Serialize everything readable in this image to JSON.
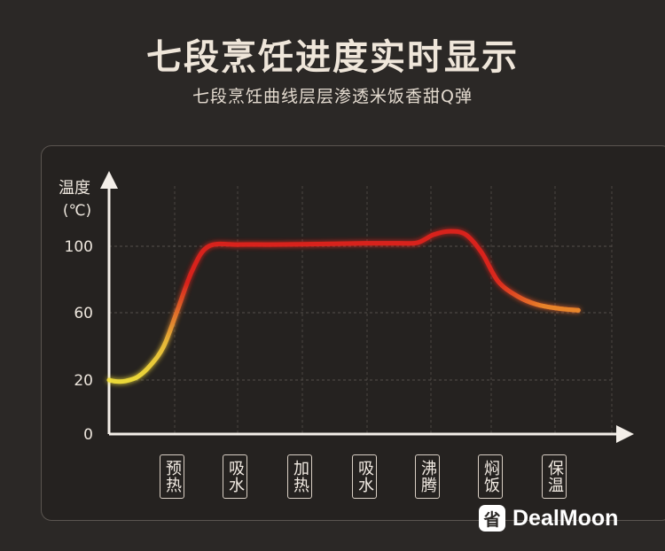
{
  "header": {
    "title": "七段烹饪进度实时显示",
    "subtitle": "七段烹饪曲线层层渗透米饭香甜Q弹"
  },
  "chart_data": {
    "type": "line",
    "ylabel_line1": "温度",
    "ylabel_line2": "(℃)",
    "yticks": [
      0,
      20,
      60,
      100
    ],
    "ylim": [
      0,
      110
    ],
    "grid": true,
    "stages": [
      "预热",
      "吸水",
      "加热",
      "吸水",
      "沸腾",
      "焖饭",
      "保温"
    ],
    "series": [
      {
        "x": [
          0,
          0.1,
          0.25,
          0.45,
          0.65,
          0.85,
          1.05,
          1.3,
          1.55,
          2,
          2.5,
          3,
          3.5,
          4,
          4.5,
          4.8,
          5.05,
          5.3,
          5.55,
          5.8,
          6.05,
          6.35,
          6.65,
          7.0,
          7.3
        ],
        "y": [
          20,
          19.5,
          19.6,
          22,
          29,
          40,
          60,
          86,
          100,
          101,
          101,
          101.2,
          101.5,
          101.8,
          101.8,
          102.2,
          107,
          109,
          107,
          96,
          79,
          70,
          65,
          62.5,
          61.5
        ]
      }
    ],
    "colors": {
      "cool": "#f5e23a",
      "hot": "#e2241d",
      "warm": "#e8872a"
    }
  },
  "brand": {
    "logo_icon": "dealmoon-logo-icon",
    "logo_glyph": "省",
    "name": "DealMoon"
  }
}
